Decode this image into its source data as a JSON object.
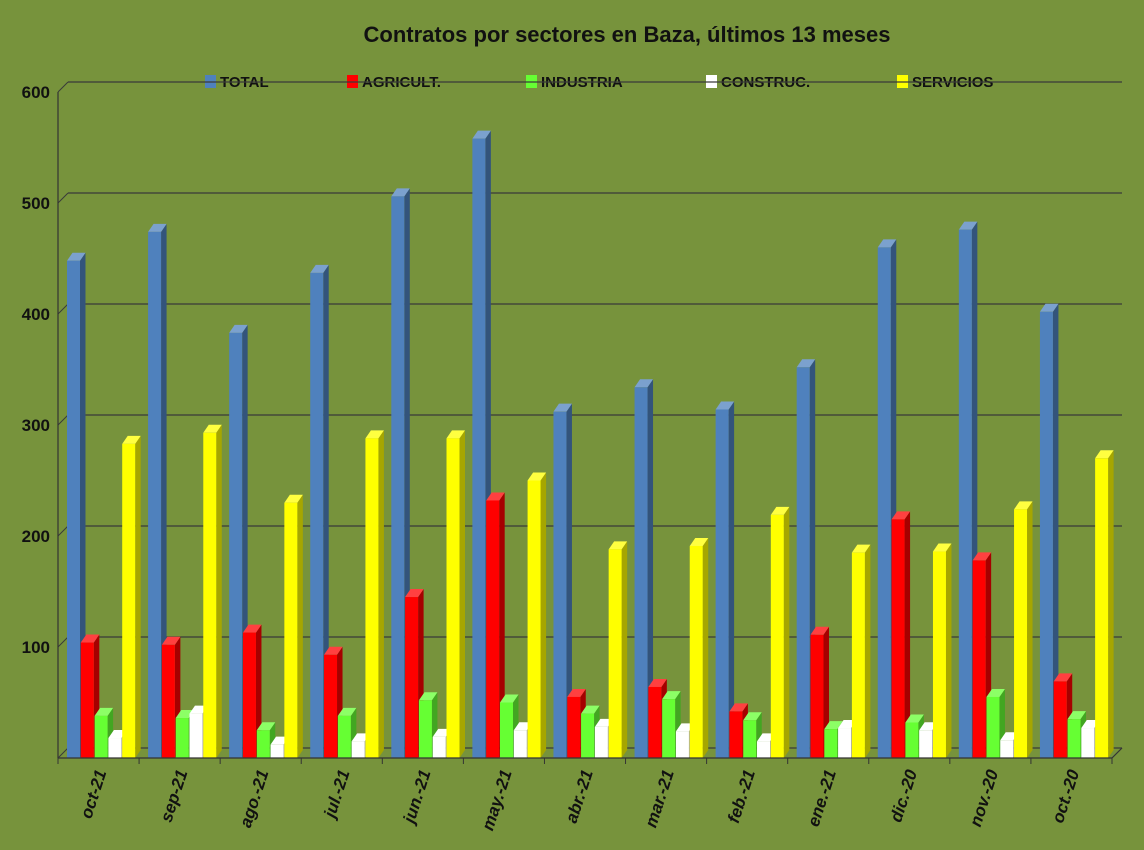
{
  "chart_data": {
    "type": "bar",
    "title": "Contratos por sectores en Baza, últimos 13 meses",
    "xlabel": "",
    "ylabel": "",
    "ylim": [
      0,
      600
    ],
    "yticks": [
      "100",
      "200",
      "300",
      "400",
      "500",
      "600"
    ],
    "grid": true,
    "legend_position": "top",
    "categories": [
      "oct-21",
      "sep-21",
      "ago.-21",
      "jul.-21",
      "jun.-21",
      "may.-21",
      "abr.-21",
      "mar.-21",
      "feb.-21",
      "ene.-21",
      "dic.-20",
      "nov.-20",
      "oct.-20"
    ],
    "series": [
      {
        "name": "TOTAL",
        "color": "#4f81bd",
        "values": [
          448,
          474,
          383,
          437,
          506,
          558,
          312,
          334,
          314,
          352,
          460,
          476,
          402
        ]
      },
      {
        "name": "AGRICULT.",
        "color": "#ff0000",
        "values": [
          104,
          102,
          113,
          93,
          145,
          232,
          55,
          64,
          42,
          111,
          215,
          178,
          69
        ]
      },
      {
        "name": "INDUSTRIA",
        "color": "#66ff33",
        "values": [
          38,
          36,
          25,
          38,
          52,
          50,
          40,
          53,
          34,
          26,
          32,
          55,
          35
        ]
      },
      {
        "name": "CONSTRUC.",
        "color": "#ffffff",
        "values": [
          18,
          40,
          12,
          15,
          19,
          25,
          28,
          24,
          15,
          27,
          25,
          16,
          27
        ]
      },
      {
        "name": "SERVICIOS",
        "color": "#ffff00",
        "values": [
          283,
          293,
          230,
          288,
          288,
          250,
          188,
          191,
          219,
          185,
          186,
          224,
          270
        ]
      }
    ]
  }
}
